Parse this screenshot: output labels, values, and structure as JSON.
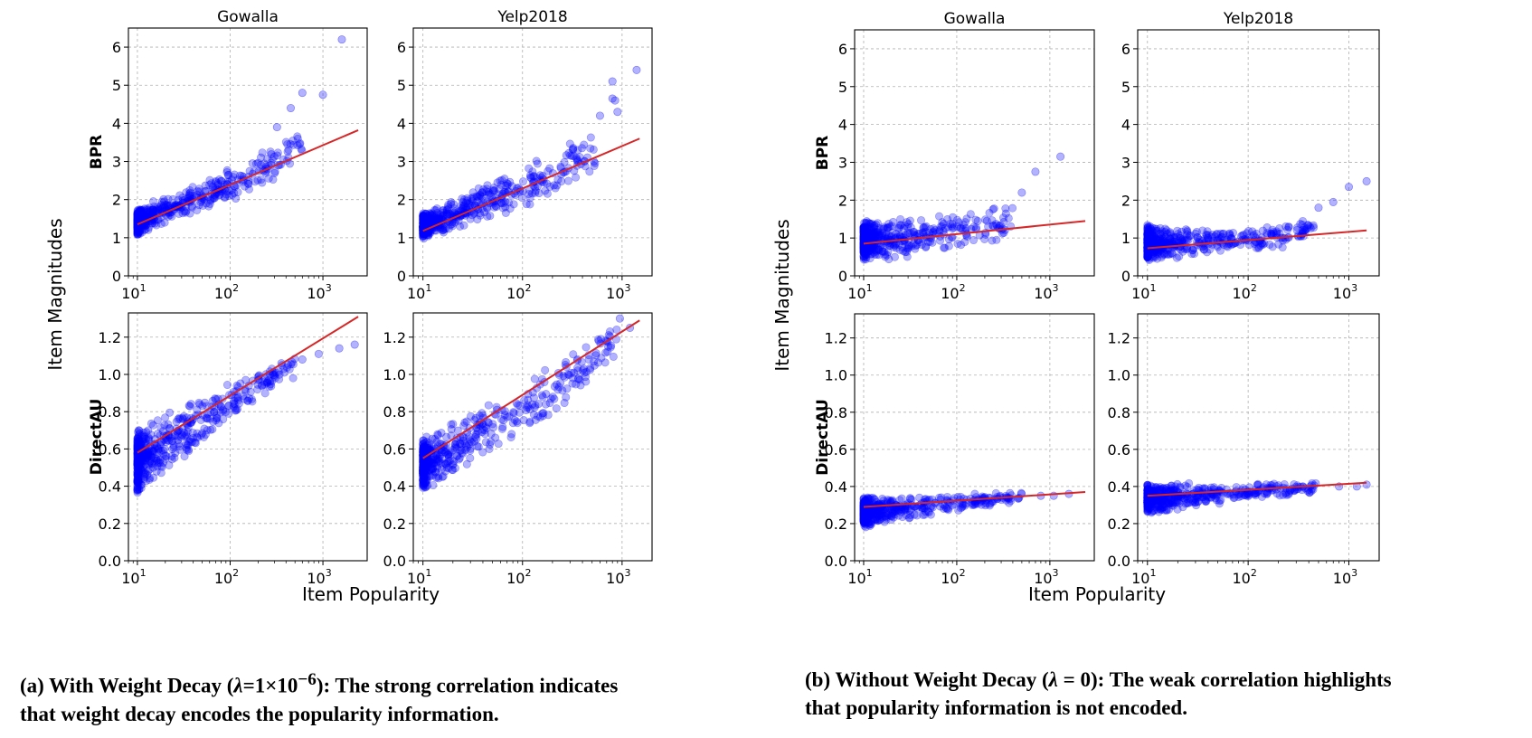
{
  "caption_a": {
    "prefix": "(a) With Weight Decay (",
    "symbol": "λ",
    "condition": "=1×10",
    "exponent": "−6",
    "suffix": "): The strong correlation indicates",
    "line2": "that weight decay encodes the popularity information."
  },
  "caption_b": {
    "prefix": "(b) Without Weight Decay (",
    "symbol": "λ",
    "condition": " = 0",
    "suffix": "): The weak correlation highlights",
    "line2": "that popularity information is not encoded."
  },
  "colors": {
    "points": "#0000ff",
    "fit": "#d62728"
  },
  "chart_data": [
    {
      "panel": "a",
      "type": "scatter",
      "xlabel": "Item Popularity",
      "ylabel": "Item Magnitudes",
      "x_scale": "log",
      "grid": true,
      "subplots": [
        {
          "column": "Gowalla",
          "row": "BPR",
          "xlim": [
            8,
            3000
          ],
          "ylim": [
            0,
            6.5
          ],
          "yticks": [
            0,
            1,
            2,
            3,
            4,
            5,
            6
          ],
          "x_range": [
            10,
            600
          ],
          "band": [
            [
              10,
              1.05,
              1.8
            ],
            [
              50,
              1.7,
              2.5
            ],
            [
              200,
              2.2,
              3.2
            ],
            [
              500,
              2.8,
              3.8
            ]
          ],
          "outliers": [
            [
              320,
              3.9
            ],
            [
              450,
              4.4
            ],
            [
              600,
              4.8
            ],
            [
              1000,
              4.75
            ],
            [
              1600,
              6.2
            ]
          ],
          "fit": [
            [
              10,
              1.35
            ],
            [
              2400,
              3.82
            ]
          ]
        },
        {
          "column": "Yelp2018",
          "row": "BPR",
          "xlim": [
            8,
            2000
          ],
          "ylim": [
            0,
            6.5
          ],
          "yticks": [
            0,
            1,
            2,
            3,
            4,
            5,
            6
          ],
          "x_range": [
            10,
            550
          ],
          "band": [
            [
              10,
              0.95,
              1.65
            ],
            [
              50,
              1.5,
              2.5
            ],
            [
              200,
              2.0,
              3.3
            ],
            [
              500,
              2.6,
              3.9
            ]
          ],
          "outliers": [
            [
              600,
              4.2
            ],
            [
              800,
              4.65
            ],
            [
              850,
              4.6
            ],
            [
              900,
              4.3
            ],
            [
              800,
              5.1
            ],
            [
              1400,
              5.4
            ]
          ],
          "fit": [
            [
              10,
              1.18
            ],
            [
              1500,
              3.6
            ]
          ]
        },
        {
          "column": "Gowalla",
          "row": "DirectAU",
          "xlim": [
            8,
            3000
          ],
          "ylim": [
            0,
            1.33
          ],
          "yticks": [
            0,
            0.2,
            0.4,
            0.6,
            0.8,
            1.0,
            1.2
          ],
          "x_range": [
            10,
            500
          ],
          "band": [
            [
              10,
              0.34,
              0.72
            ],
            [
              50,
              0.62,
              0.9
            ],
            [
              200,
              0.86,
              1.03
            ],
            [
              500,
              0.98,
              1.1
            ]
          ],
          "outliers": [
            [
              600,
              1.08
            ],
            [
              900,
              1.11
            ],
            [
              1500,
              1.14
            ],
            [
              2200,
              1.16
            ]
          ],
          "fit": [
            [
              10,
              0.58
            ],
            [
              2400,
              1.31
            ]
          ]
        },
        {
          "column": "Yelp2018",
          "row": "DirectAU",
          "xlim": [
            8,
            2000
          ],
          "ylim": [
            0,
            1.33
          ],
          "yticks": [
            0,
            0.2,
            0.4,
            0.6,
            0.8,
            1.0,
            1.2
          ],
          "x_range": [
            10,
            900
          ],
          "band": [
            [
              10,
              0.36,
              0.66
            ],
            [
              50,
              0.55,
              0.87
            ],
            [
              200,
              0.78,
              1.07
            ],
            [
              900,
              1.08,
              1.28
            ]
          ],
          "outliers": [
            [
              950,
              1.3
            ],
            [
              1200,
              1.25
            ]
          ],
          "fit": [
            [
              10,
              0.55
            ],
            [
              1500,
              1.29
            ]
          ]
        }
      ]
    },
    {
      "panel": "b",
      "type": "scatter",
      "xlabel": "Item Popularity",
      "ylabel": "Item Magnitudes",
      "x_scale": "log",
      "grid": true,
      "subplots": [
        {
          "column": "Gowalla",
          "row": "BPR",
          "xlim": [
            8,
            3000
          ],
          "ylim": [
            0,
            6.5
          ],
          "yticks": [
            0,
            1,
            2,
            3,
            4,
            5,
            6
          ],
          "x_range": [
            10,
            400
          ],
          "band": [
            [
              10,
              0.35,
              1.5
            ],
            [
              50,
              0.55,
              1.55
            ],
            [
              200,
              0.7,
              1.8
            ],
            [
              400,
              0.9,
              2.0
            ]
          ],
          "outliers": [
            [
              500,
              2.2
            ],
            [
              700,
              2.75
            ],
            [
              1300,
              3.15
            ]
          ],
          "fit": [
            [
              10,
              0.85
            ],
            [
              2400,
              1.45
            ]
          ]
        },
        {
          "column": "Yelp2018",
          "row": "BPR",
          "xlim": [
            8,
            2000
          ],
          "ylim": [
            0,
            6.5
          ],
          "yticks": [
            0,
            1,
            2,
            3,
            4,
            5,
            6
          ],
          "x_range": [
            10,
            450
          ],
          "band": [
            [
              10,
              0.35,
              1.35
            ],
            [
              50,
              0.6,
              1.25
            ],
            [
              200,
              0.7,
              1.35
            ],
            [
              450,
              1.0,
              1.6
            ]
          ],
          "outliers": [
            [
              500,
              1.8
            ],
            [
              700,
              1.95
            ],
            [
              1000,
              2.35
            ],
            [
              1500,
              2.5
            ]
          ],
          "fit": [
            [
              10,
              0.73
            ],
            [
              1500,
              1.2
            ]
          ]
        },
        {
          "column": "Gowalla",
          "row": "DirectAU",
          "xlim": [
            8,
            3000
          ],
          "ylim": [
            0,
            1.33
          ],
          "yticks": [
            0,
            0.2,
            0.4,
            0.6,
            0.8,
            1.0,
            1.2
          ],
          "x_range": [
            10,
            500
          ],
          "band": [
            [
              10,
              0.17,
              0.35
            ],
            [
              50,
              0.23,
              0.36
            ],
            [
              200,
              0.29,
              0.37
            ],
            [
              500,
              0.31,
              0.37
            ]
          ],
          "outliers": [
            [
              800,
              0.35
            ],
            [
              1100,
              0.35
            ],
            [
              1600,
              0.36
            ]
          ],
          "fit": [
            [
              10,
              0.29
            ],
            [
              2400,
              0.37
            ]
          ]
        },
        {
          "column": "Yelp2018",
          "row": "DirectAU",
          "xlim": [
            8,
            2000
          ],
          "ylim": [
            0,
            1.33
          ],
          "yticks": [
            0,
            0.2,
            0.4,
            0.6,
            0.8,
            1.0,
            1.2
          ],
          "x_range": [
            10,
            500
          ],
          "band": [
            [
              10,
              0.25,
              0.42
            ],
            [
              50,
              0.3,
              0.42
            ],
            [
              200,
              0.34,
              0.43
            ],
            [
              500,
              0.37,
              0.42
            ]
          ],
          "outliers": [
            [
              800,
              0.4
            ],
            [
              1200,
              0.4
            ],
            [
              1500,
              0.41
            ]
          ],
          "fit": [
            [
              10,
              0.35
            ],
            [
              1500,
              0.42
            ]
          ]
        }
      ]
    }
  ]
}
